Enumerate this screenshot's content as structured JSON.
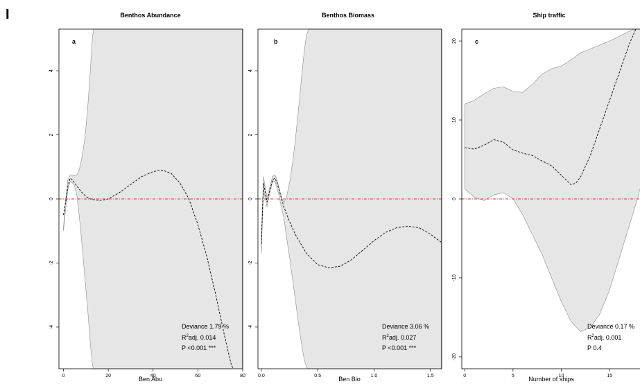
{
  "figure": {
    "panel_tag": "I"
  },
  "chart_data": [
    {
      "type": "line",
      "panel_label": "a",
      "title": "Benthos Abundance",
      "xlabel": "Ben Abu",
      "ylabel": "",
      "xlim": [
        -2,
        80
      ],
      "ylim": [
        -5.3,
        5.3
      ],
      "xticks": [
        0,
        20,
        40,
        60,
        80
      ],
      "xtick_labels": [
        "0",
        "20",
        "40",
        "60",
        "80"
      ],
      "yticks": [
        -4,
        -2,
        0,
        2,
        4
      ],
      "ytick_labels": [
        "-4",
        "-2",
        "0",
        "2",
        "4"
      ],
      "reference_line_y": 0,
      "fit": {
        "x": [
          0,
          1,
          2,
          3,
          4,
          5,
          6,
          8,
          10,
          12,
          14,
          16,
          18,
          20,
          25,
          30,
          35,
          40,
          44,
          48,
          52,
          56,
          60,
          64,
          68,
          72,
          75,
          76
        ],
        "y": [
          -0.5,
          -0.1,
          0.4,
          0.65,
          0.6,
          0.5,
          0.4,
          0.22,
          0.08,
          0.0,
          -0.03,
          -0.05,
          -0.03,
          0.0,
          0.2,
          0.45,
          0.7,
          0.85,
          0.9,
          0.8,
          0.5,
          0.0,
          -0.8,
          -1.8,
          -3.0,
          -4.3,
          -5.2,
          -5.3
        ]
      },
      "band_upper": {
        "x": [
          0,
          1,
          2,
          3,
          4,
          5,
          6,
          7,
          8,
          9,
          10,
          11,
          12,
          12.5,
          13,
          13.5
        ],
        "y": [
          -0.9,
          0.0,
          0.6,
          0.75,
          0.75,
          0.72,
          0.75,
          0.9,
          1.2,
          1.6,
          2.2,
          3.0,
          4.0,
          4.6,
          5.1,
          5.3
        ]
      },
      "band_lower": {
        "x": [
          0,
          1,
          2,
          3,
          4,
          5,
          6,
          7,
          8,
          9,
          10,
          11,
          12,
          12.5,
          13,
          13.5
        ],
        "y": [
          -1.0,
          -0.3,
          0.3,
          0.55,
          0.5,
          0.4,
          0.1,
          -0.5,
          -1.2,
          -2.0,
          -2.8,
          -3.6,
          -4.5,
          -4.9,
          -5.2,
          -5.3
        ]
      },
      "band_full_from_x": 13.5,
      "stats": [
        "Deviance 1.79 %",
        "adj. 0.014",
        "P <0.001 ***"
      ]
    },
    {
      "type": "line",
      "panel_label": "b",
      "title": "Benthos Biomass",
      "xlabel": "Ben Bio",
      "ylabel": "",
      "xlim": [
        -0.03,
        1.6
      ],
      "ylim": [
        -5.3,
        5.3
      ],
      "xticks": [
        0.0,
        0.5,
        1.0,
        1.5
      ],
      "xtick_labels": [
        "0.0",
        "0.5",
        "1.0",
        "1.5"
      ],
      "yticks": [
        -4,
        -2,
        0,
        2,
        4
      ],
      "ytick_labels": [
        "-4",
        "-2",
        "0",
        "2",
        "4"
      ],
      "reference_line_y": 0,
      "fit": {
        "x": [
          0.0,
          0.01,
          0.02,
          0.03,
          0.05,
          0.07,
          0.1,
          0.12,
          0.14,
          0.16,
          0.18,
          0.2,
          0.25,
          0.3,
          0.4,
          0.5,
          0.6,
          0.7,
          0.8,
          0.9,
          1.0,
          1.1,
          1.2,
          1.3,
          1.4,
          1.5,
          1.6
        ],
        "y": [
          -1.4,
          -0.4,
          0.5,
          0.3,
          -0.1,
          0.2,
          0.6,
          0.65,
          0.5,
          0.25,
          0.0,
          -0.25,
          -0.7,
          -1.1,
          -1.7,
          -2.05,
          -2.15,
          -2.1,
          -1.9,
          -1.6,
          -1.3,
          -1.05,
          -0.9,
          -0.85,
          -0.9,
          -1.1,
          -1.35
        ]
      },
      "band_upper": {
        "x": [
          0.0,
          0.01,
          0.02,
          0.03,
          0.05,
          0.07,
          0.1,
          0.12,
          0.14,
          0.16,
          0.18,
          0.2,
          0.22,
          0.25,
          0.28,
          0.3,
          0.33,
          0.36,
          0.38,
          0.4,
          0.42
        ],
        "y": [
          -1.2,
          -0.2,
          0.7,
          0.45,
          0.05,
          0.3,
          0.7,
          0.75,
          0.6,
          0.3,
          0.05,
          -0.1,
          0.0,
          0.5,
          1.2,
          1.8,
          2.8,
          3.9,
          4.6,
          5.1,
          5.3
        ]
      },
      "band_lower": {
        "x": [
          0.0,
          0.01,
          0.02,
          0.03,
          0.05,
          0.07,
          0.1,
          0.12,
          0.14,
          0.16,
          0.18,
          0.2,
          0.22,
          0.25,
          0.28,
          0.3,
          0.33,
          0.36,
          0.38,
          0.4,
          0.42
        ],
        "y": [
          -1.7,
          -0.6,
          0.3,
          0.1,
          -0.25,
          0.1,
          0.55,
          0.55,
          0.35,
          0.05,
          -0.3,
          -0.6,
          -1.1,
          -1.8,
          -2.6,
          -3.1,
          -3.9,
          -4.6,
          -5.0,
          -5.25,
          -5.3
        ]
      },
      "band_full_from_x": 0.42,
      "stats": [
        "Deviance  3.06 %",
        "adj. 0.027",
        "P <0.001 ***"
      ]
    },
    {
      "type": "line",
      "panel_label": "c",
      "title": "Ship traffic",
      "xlabel": "Number of ships",
      "ylabel": "",
      "xlim": [
        -0.3,
        18.5
      ],
      "ylim": [
        -21.5,
        21.5
      ],
      "xticks": [
        0,
        5,
        10,
        15
      ],
      "xtick_labels": [
        "0",
        "5",
        "10",
        "15"
      ],
      "yticks": [
        -20,
        -10,
        0,
        10,
        20
      ],
      "ytick_labels": [
        "-20",
        "-10",
        "0",
        "10",
        "20"
      ],
      "reference_line_y": 0,
      "fit": {
        "x": [
          0,
          1,
          2,
          3,
          4,
          5,
          6,
          7,
          8,
          9,
          10,
          11,
          11.5,
          12,
          13,
          14,
          15,
          16,
          17,
          17.7
        ],
        "y": [
          6.5,
          6.3,
          6.8,
          7.5,
          7.2,
          6.2,
          5.8,
          5.5,
          4.8,
          4.2,
          3.0,
          1.8,
          2.0,
          2.8,
          5.5,
          9.0,
          12.5,
          16.0,
          19.5,
          21.5
        ]
      },
      "band_upper": {
        "x": [
          0,
          1,
          2,
          3,
          4,
          5,
          6,
          7,
          8,
          9,
          10,
          11,
          12,
          13,
          14,
          15,
          16,
          17,
          17.5
        ],
        "y": [
          12.0,
          12.5,
          13.3,
          14.0,
          14.2,
          13.6,
          13.5,
          14.5,
          15.8,
          16.5,
          16.8,
          17.6,
          18.5,
          19.0,
          19.5,
          20.0,
          20.6,
          21.2,
          21.5
        ]
      },
      "band_lower": {
        "x": [
          0,
          1,
          2,
          3,
          4,
          5,
          6,
          7,
          8,
          9,
          10,
          11,
          12,
          13,
          14,
          15,
          16,
          17,
          18,
          18.5
        ],
        "y": [
          1.3,
          0.2,
          -0.2,
          0.5,
          0.8,
          0.0,
          -2.0,
          -4.5,
          -7.0,
          -10.0,
          -13.0,
          -15.5,
          -16.8,
          -16.3,
          -14.5,
          -11.5,
          -7.5,
          -3.5,
          0.5,
          2.8
        ]
      },
      "stats": [
        "Deviance 0.17 %",
        "adj. 0.001",
        "P 0.4"
      ]
    }
  ]
}
